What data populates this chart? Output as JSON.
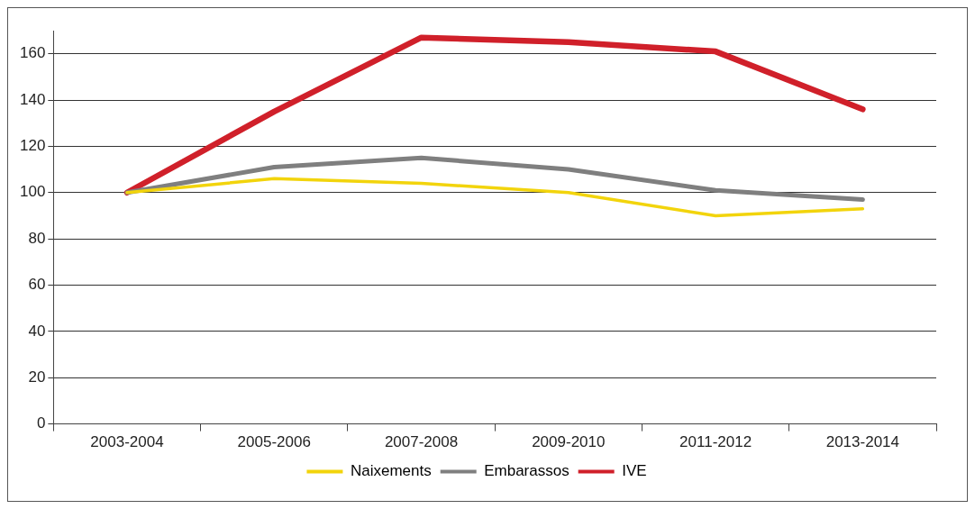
{
  "chart_data": {
    "type": "line",
    "categories": [
      "2003-2004",
      "2005-2006",
      "2007-2008",
      "2009-2010",
      "2011-2012",
      "2013-2014"
    ],
    "series": [
      {
        "name": "Naixements",
        "color": "#f2d40c",
        "values": [
          100,
          106,
          104,
          100,
          90,
          93
        ]
      },
      {
        "name": "Embarassos",
        "color": "#7f7f7f",
        "values": [
          100,
          111,
          115,
          110,
          101,
          97
        ]
      },
      {
        "name": "IVE",
        "color": "#d0202a",
        "values": [
          100,
          135,
          167,
          165,
          161,
          136
        ]
      }
    ],
    "ylim": [
      0,
      170
    ],
    "yticks": [
      0,
      20,
      40,
      60,
      80,
      100,
      120,
      140,
      160
    ],
    "grid": "y",
    "legend": "bottom",
    "marker": "none",
    "line_style": "solid"
  }
}
